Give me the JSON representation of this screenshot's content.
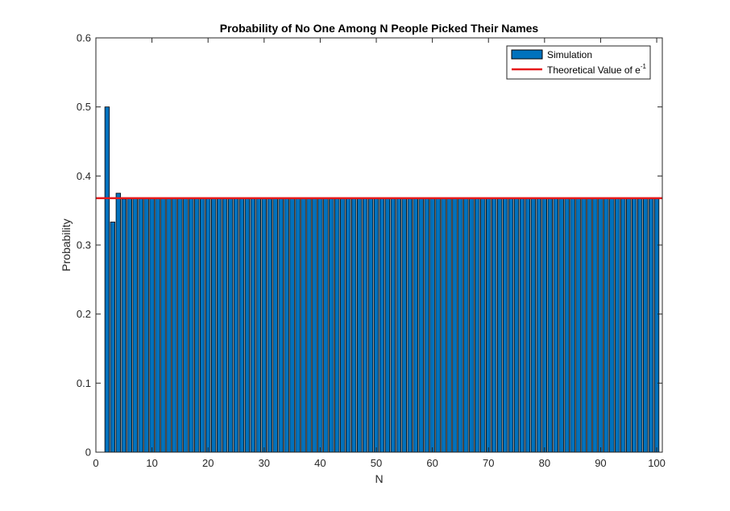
{
  "chart_data": {
    "type": "bar",
    "title": "Probability of No One Among N People Picked Their Names",
    "xlabel": "N",
    "ylabel": "Probability",
    "xlim": [
      0,
      101
    ],
    "ylim": [
      0,
      0.6
    ],
    "xticks": [
      0,
      10,
      20,
      30,
      40,
      50,
      60,
      70,
      80,
      90,
      100
    ],
    "yticks": [
      0,
      0.1,
      0.2,
      0.3,
      0.4,
      0.5,
      0.6
    ],
    "grid": false,
    "legend_position": "top-right",
    "series": [
      {
        "name": "Simulation",
        "color": "#0072BD",
        "x": [
          1,
          2,
          3,
          4,
          5,
          6,
          7,
          8,
          9,
          10,
          11,
          12,
          13,
          14,
          15,
          16,
          17,
          18,
          19,
          20,
          21,
          22,
          23,
          24,
          25,
          26,
          27,
          28,
          29,
          30,
          31,
          32,
          33,
          34,
          35,
          36,
          37,
          38,
          39,
          40,
          41,
          42,
          43,
          44,
          45,
          46,
          47,
          48,
          49,
          50,
          51,
          52,
          53,
          54,
          55,
          56,
          57,
          58,
          59,
          60,
          61,
          62,
          63,
          64,
          65,
          66,
          67,
          68,
          69,
          70,
          71,
          72,
          73,
          74,
          75,
          76,
          77,
          78,
          79,
          80,
          81,
          82,
          83,
          84,
          85,
          86,
          87,
          88,
          89,
          90,
          91,
          92,
          93,
          94,
          95,
          96,
          97,
          98,
          99,
          100
        ],
        "values": [
          0,
          0.5,
          0.3333,
          0.375,
          0.3667,
          0.3681,
          0.3679,
          0.3679,
          0.3679,
          0.3679,
          0.3679,
          0.3679,
          0.3679,
          0.3679,
          0.3679,
          0.3679,
          0.3679,
          0.3679,
          0.3679,
          0.3679,
          0.3679,
          0.3679,
          0.3679,
          0.3679,
          0.3679,
          0.3679,
          0.3679,
          0.3679,
          0.3679,
          0.3679,
          0.3679,
          0.3679,
          0.3679,
          0.3679,
          0.3679,
          0.3679,
          0.3679,
          0.3679,
          0.3679,
          0.3679,
          0.3679,
          0.3679,
          0.3679,
          0.3679,
          0.3679,
          0.3679,
          0.3679,
          0.3679,
          0.3679,
          0.3679,
          0.3679,
          0.3679,
          0.3679,
          0.3679,
          0.3679,
          0.3679,
          0.3679,
          0.3679,
          0.3679,
          0.3679,
          0.3679,
          0.3679,
          0.3679,
          0.3679,
          0.3679,
          0.3679,
          0.3679,
          0.3679,
          0.3679,
          0.3679,
          0.3679,
          0.3679,
          0.3679,
          0.3679,
          0.3679,
          0.3679,
          0.3679,
          0.3679,
          0.3679,
          0.3679,
          0.3679,
          0.3679,
          0.3679,
          0.3679,
          0.3679,
          0.3679,
          0.3679,
          0.3679,
          0.3679,
          0.3679,
          0.3679,
          0.3679,
          0.3679,
          0.3679,
          0.3679,
          0.3679,
          0.3679,
          0.3679,
          0.3679,
          0.3679
        ]
      },
      {
        "name": "Theoretical Value of e",
        "name_superscript": "-1",
        "type": "line",
        "color": "#E6191A",
        "x": [
          0,
          101
        ],
        "values": [
          0.3679,
          0.3679
        ]
      }
    ]
  }
}
